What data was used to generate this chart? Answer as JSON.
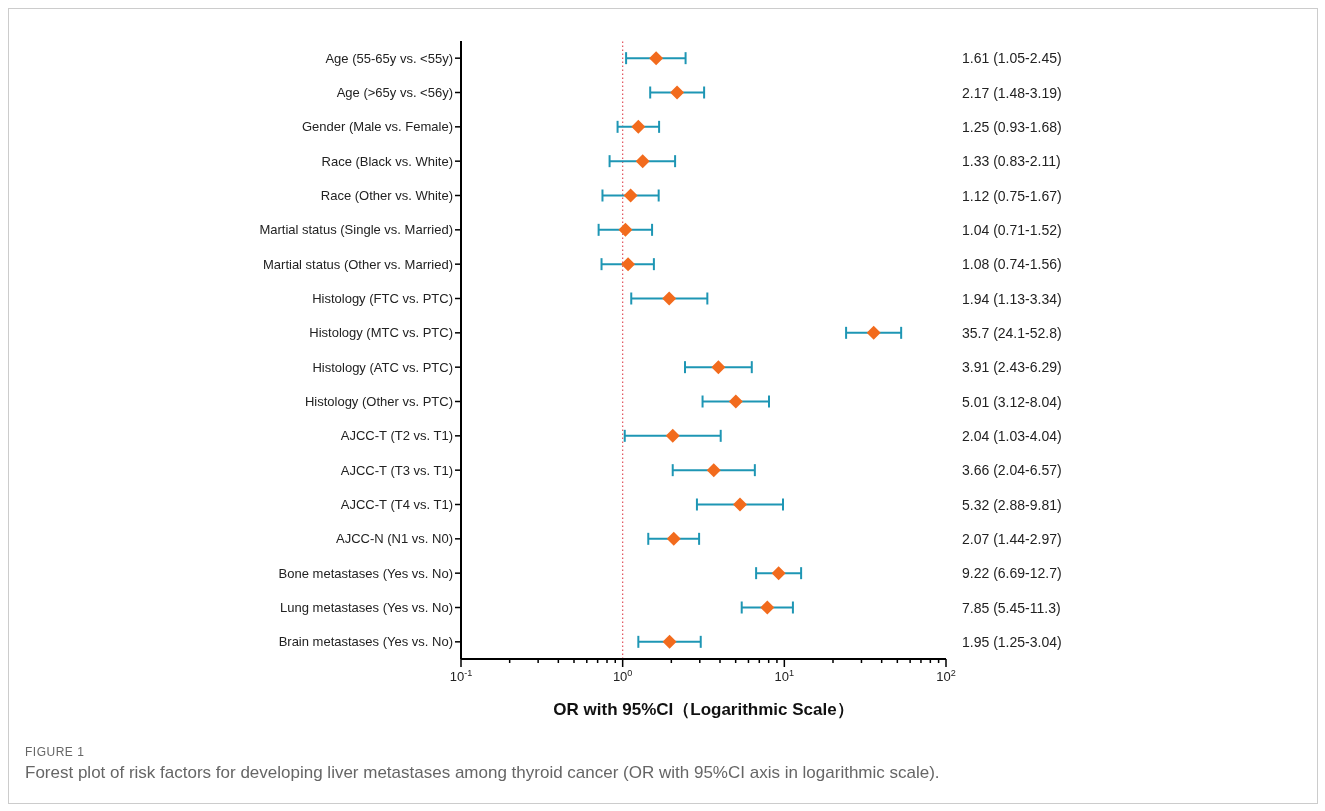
{
  "chart_data": {
    "type": "scatter",
    "orientation": "horizontal",
    "xlabel": "OR with 95%CI（Logarithmic Scale）",
    "categories": [
      "Age (55-65y vs. <55y)",
      "Age (>65y vs. <56y)",
      "Gender (Male vs. Female)",
      "Race (Black vs. White)",
      "Race (Other vs. White)",
      "Martial status (Single vs. Married)",
      "Martial status (Other vs. Married)",
      "Histology (FTC vs. PTC)",
      "Histology (MTC vs. PTC)",
      "Histology (ATC vs. PTC)",
      "Histology (Other vs. PTC)",
      "AJCC-T (T2 vs. T1)",
      "AJCC-T (T3 vs. T1)",
      "AJCC-T (T4 vs. T1)",
      "AJCC-N (N1 vs. N0)",
      "Bone metastases (Yes vs. No)",
      "Lung metastases (Yes vs. No)",
      "Brain metastases (Yes vs. No)"
    ],
    "values": [
      1.61,
      2.17,
      1.25,
      1.33,
      1.12,
      1.04,
      1.08,
      1.94,
      35.7,
      3.91,
      5.01,
      2.04,
      3.66,
      5.32,
      2.07,
      9.22,
      7.85,
      1.95
    ],
    "errors": [
      [
        1.05,
        2.45
      ],
      [
        1.48,
        3.19
      ],
      [
        0.93,
        1.68
      ],
      [
        0.83,
        2.11
      ],
      [
        0.75,
        1.67
      ],
      [
        0.71,
        1.52
      ],
      [
        0.74,
        1.56
      ],
      [
        1.13,
        3.34
      ],
      [
        24.1,
        52.8
      ],
      [
        2.43,
        6.29
      ],
      [
        3.12,
        8.04
      ],
      [
        1.03,
        4.04
      ],
      [
        2.04,
        6.57
      ],
      [
        2.88,
        9.81
      ],
      [
        1.44,
        2.97
      ],
      [
        6.69,
        12.7
      ],
      [
        5.45,
        11.3
      ],
      [
        1.25,
        3.04
      ]
    ],
    "value_labels": [
      "1.61 (1.05-2.45)",
      "2.17 (1.48-3.19)",
      "1.25 (0.93-1.68)",
      "1.33 (0.83-2.11)",
      "1.12 (0.75-1.67)",
      "1.04 (0.71-1.52)",
      "1.08 (0.74-1.56)",
      "1.94 (1.13-3.34)",
      "35.7 (24.1-52.8)",
      "3.91 (2.43-6.29)",
      "5.01 (3.12-8.04)",
      "2.04 (1.03-4.04)",
      "3.66 (2.04-6.57)",
      "5.32 (2.88-9.81)",
      "2.07 (1.44-2.97)",
      "9.22 (6.69-12.7)",
      "7.85 (5.45-11.3)",
      "1.95 (1.25-3.04)"
    ],
    "color": "#f26b1d",
    "marker": "diamond",
    "log": "x",
    "xlim": [
      0.1,
      100
    ],
    "xticks": [
      {
        "value": 0.1,
        "label": "10$^{-1}$"
      },
      {
        "value": 0.2,
        "label": null
      },
      {
        "value": 0.3,
        "label": null
      },
      {
        "value": 0.4,
        "label": null
      },
      {
        "value": 0.5,
        "label": null
      },
      {
        "value": 0.6,
        "label": null
      },
      {
        "value": 0.7,
        "label": null
      },
      {
        "value": 0.8,
        "label": null
      },
      {
        "value": 0.9,
        "label": null
      },
      {
        "value": 1,
        "label": "10$^{0}$"
      },
      {
        "value": 2,
        "label": null
      },
      {
        "value": 3,
        "label": null
      },
      {
        "value": 4,
        "label": null
      },
      {
        "value": 5,
        "label": null
      },
      {
        "value": 6,
        "label": null
      },
      {
        "value": 7,
        "label": null
      },
      {
        "value": 8,
        "label": null
      },
      {
        "value": 9,
        "label": null
      },
      {
        "value": 10,
        "label": "10$^{1}$"
      },
      {
        "value": 20,
        "label": null
      },
      {
        "value": 30,
        "label": null
      },
      {
        "value": 40,
        "label": null
      },
      {
        "value": 50,
        "label": null
      },
      {
        "value": 60,
        "label": null
      },
      {
        "value": 70,
        "label": null
      },
      {
        "value": 80,
        "label": null
      },
      {
        "value": 90,
        "label": null
      },
      {
        "value": 100,
        "label": "10$^{2}$"
      }
    ],
    "ref_lines": [
      {
        "axis": "x",
        "value": 1,
        "color": "#e0505a",
        "line_style": "dotted"
      }
    ],
    "grid": false,
    "annotations": [
      "FIGURE 1",
      "Forest plot of risk factors for developing liver metastases among thyroid cancer (OR with 95%CI axis in logarithmic scale)."
    ]
  }
}
